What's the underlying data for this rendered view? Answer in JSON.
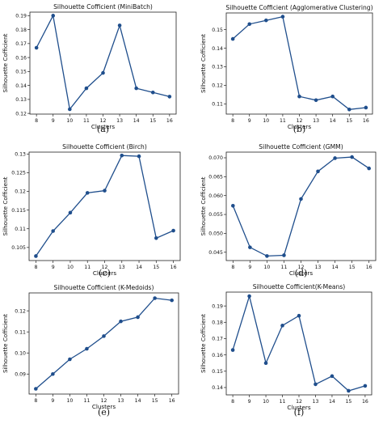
{
  "chart_data": [
    {
      "type": "line",
      "title": "Silhouette Cofficient (MiniBatch)",
      "xlabel": "Clusters",
      "ylabel": "Silhouette Cofficient",
      "caption": "(a)",
      "x": [
        8,
        9,
        10,
        11,
        12,
        13,
        14,
        15,
        16
      ],
      "y": [
        0.167,
        0.19,
        0.123,
        0.138,
        0.149,
        0.183,
        0.138,
        0.135,
        0.132
      ],
      "yticks": [
        0.12,
        0.13,
        0.14,
        0.15,
        0.16,
        0.17,
        0.18,
        0.19
      ],
      "ylim": [
        0.1195,
        0.1925
      ],
      "color": "#1f4e8c",
      "grid": false
    },
    {
      "type": "line",
      "title": "Silhouette Cofficient (Agglomerative Clustering)",
      "xlabel": "Clusters",
      "ylabel": "Silhouette Cofficient",
      "caption": "(b)",
      "x": [
        8,
        9,
        10,
        11,
        12,
        13,
        14,
        15,
        16
      ],
      "y": [
        0.145,
        0.153,
        0.155,
        0.157,
        0.114,
        0.112,
        0.114,
        0.107,
        0.108
      ],
      "yticks": [
        0.11,
        0.12,
        0.13,
        0.14,
        0.15
      ],
      "ylim": [
        0.1045,
        0.159
      ],
      "color": "#1f4e8c",
      "grid": false
    },
    {
      "type": "line",
      "title": "Silhouette Cofficient (Birch)",
      "xlabel": "Clusters",
      "ylabel": "Silhouette Cofficient",
      "caption": "(c)",
      "x": [
        8,
        9,
        10,
        11,
        12,
        13,
        14,
        15,
        16
      ],
      "y": [
        0.1027,
        0.1094,
        0.1143,
        0.1196,
        0.1202,
        0.1296,
        0.1294,
        0.1075,
        0.1095
      ],
      "yticks": [
        0.105,
        0.11,
        0.115,
        0.12,
        0.125,
        0.13
      ],
      "ylim": [
        0.1015,
        0.1305
      ],
      "yformat": "trim",
      "color": "#1f4e8c",
      "grid": false
    },
    {
      "type": "line",
      "title": "Silhouette Cofficient (GMM)",
      "xlabel": "Clusters",
      "ylabel": "Silhouette Cofficient",
      "caption": "(d)",
      "x": [
        8,
        9,
        10,
        11,
        12,
        13,
        14,
        15,
        16
      ],
      "y": [
        0.0573,
        0.0463,
        0.044,
        0.0442,
        0.0591,
        0.0664,
        0.0699,
        0.0702,
        0.0672
      ],
      "yticks": [
        0.045,
        0.05,
        0.055,
        0.06,
        0.065,
        0.07
      ],
      "ylim": [
        0.0428,
        0.0715
      ],
      "yformat": "fixed3",
      "color": "#1f4e8c",
      "grid": false
    },
    {
      "type": "line",
      "title": "Silhouette Cofficient (K-Medoids)",
      "xlabel": "Clusters",
      "ylabel": "Silhouette Cofficient",
      "caption": "(e)",
      "x": [
        8,
        9,
        10,
        11,
        12,
        13,
        14,
        15,
        16
      ],
      "y": [
        0.083,
        0.09,
        0.097,
        0.102,
        0.108,
        0.115,
        0.117,
        0.126,
        0.125
      ],
      "yticks": [
        0.09,
        0.1,
        0.11,
        0.12
      ],
      "ylim": [
        0.0805,
        0.1285
      ],
      "color": "#1f4e8c",
      "grid": false
    },
    {
      "type": "line",
      "title": "Silhouette Cofficient(K-Means)",
      "xlabel": "Clusters",
      "ylabel": "Silhouette Cofficient",
      "caption": "(f)",
      "x": [
        8,
        9,
        10,
        11,
        12,
        13,
        14,
        15,
        16
      ],
      "y": [
        0.163,
        0.196,
        0.155,
        0.178,
        0.184,
        0.142,
        0.147,
        0.138,
        0.141
      ],
      "yticks": [
        0.14,
        0.15,
        0.16,
        0.17,
        0.18,
        0.19
      ],
      "ylim": [
        0.1355,
        0.1985
      ],
      "color": "#1f4e8c",
      "grid": false
    }
  ]
}
